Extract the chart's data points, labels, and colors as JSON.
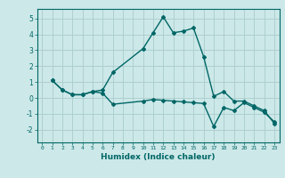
{
  "xlabel": "Humidex (Indice chaleur)",
  "bg_color": "#cce8e8",
  "grid_color": "#aacccc",
  "line_color": "#006666",
  "xlim": [
    -0.5,
    23.5
  ],
  "ylim": [
    -2.8,
    5.6
  ],
  "yticks": [
    -2,
    -1,
    0,
    1,
    2,
    3,
    4,
    5
  ],
  "xticks": [
    0,
    1,
    2,
    3,
    4,
    5,
    6,
    7,
    8,
    9,
    10,
    11,
    12,
    13,
    14,
    15,
    16,
    17,
    18,
    19,
    20,
    21,
    22,
    23
  ],
  "line1_x": [
    1,
    2,
    3,
    4,
    5,
    6,
    7,
    10,
    11,
    12,
    13,
    14,
    15,
    16,
    17,
    18,
    19,
    20,
    21,
    22,
    23
  ],
  "line1_y": [
    1.1,
    0.5,
    0.2,
    0.2,
    0.4,
    0.5,
    1.6,
    3.1,
    4.1,
    5.1,
    4.1,
    4.2,
    4.4,
    2.6,
    0.1,
    0.4,
    -0.2,
    -0.2,
    -0.5,
    -0.8,
    -1.6
  ],
  "line2_x": [
    1,
    2,
    3,
    4,
    5,
    6,
    7,
    10,
    11,
    12,
    13,
    14,
    15,
    16,
    17,
    18,
    19,
    20,
    21,
    22,
    23
  ],
  "line2_y": [
    1.1,
    0.5,
    0.2,
    0.2,
    0.4,
    0.3,
    -0.4,
    -0.2,
    -0.1,
    -0.15,
    -0.2,
    -0.25,
    -0.3,
    -0.35,
    -1.8,
    -0.6,
    -0.8,
    -0.3,
    -0.6,
    -0.9,
    -1.5
  ]
}
